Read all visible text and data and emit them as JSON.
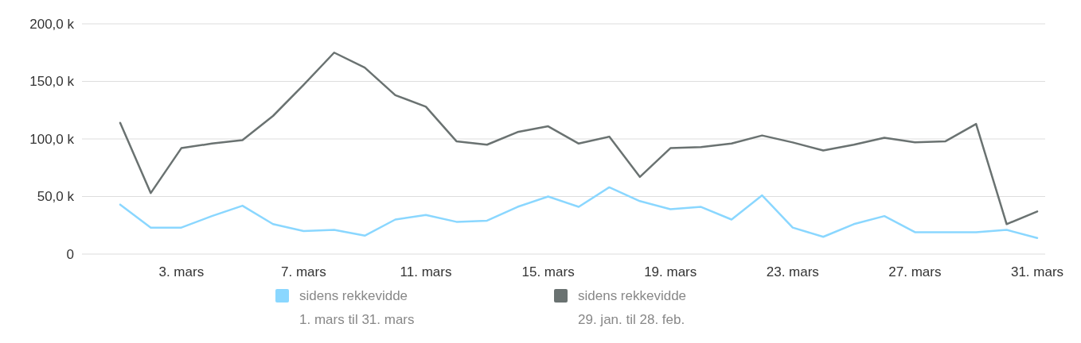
{
  "chart_data": {
    "type": "line",
    "categories": [
      null,
      null,
      "3. mars",
      null,
      null,
      null,
      "7. mars",
      null,
      null,
      null,
      "11. mars",
      null,
      null,
      null,
      "15. mars",
      null,
      null,
      null,
      "19. mars",
      null,
      null,
      null,
      "23. mars",
      null,
      null,
      null,
      "27. mars",
      null,
      null,
      null,
      "31. mars"
    ],
    "series": [
      {
        "name": "sidens rekkevidde\n1. mars til 31. mars",
        "color": "#8ad7ff",
        "values": [
          43,
          23,
          23,
          33,
          42,
          26,
          20,
          21,
          16,
          30,
          34,
          28,
          29,
          41,
          50,
          41,
          58,
          46,
          39,
          41,
          30,
          51,
          23,
          15,
          26,
          33,
          19,
          19,
          19,
          21,
          14
        ]
      },
      {
        "name": "sidens rekkevidde\n29. jan. til 28. feb.",
        "color": "#6a7271",
        "values": [
          114,
          53,
          92,
          96,
          99,
          120,
          147,
          175,
          162,
          138,
          128,
          98,
          95,
          106,
          111,
          96,
          102,
          67,
          92,
          93,
          96,
          103,
          97,
          90,
          95,
          101,
          97,
          98,
          113,
          26,
          37
        ]
      }
    ],
    "ylim": [
      0,
      200
    ],
    "yticks": [
      0,
      {
        "value": 50,
        "label": "50,0 k"
      },
      {
        "value": 100,
        "label": "100,0 k"
      },
      {
        "value": 150,
        "label": "150,0 k"
      },
      {
        "value": 200,
        "label": "200,0 k"
      }
    ],
    "grid": "y",
    "legend": "bottom",
    "marker": "none",
    "line_style": "solid"
  }
}
